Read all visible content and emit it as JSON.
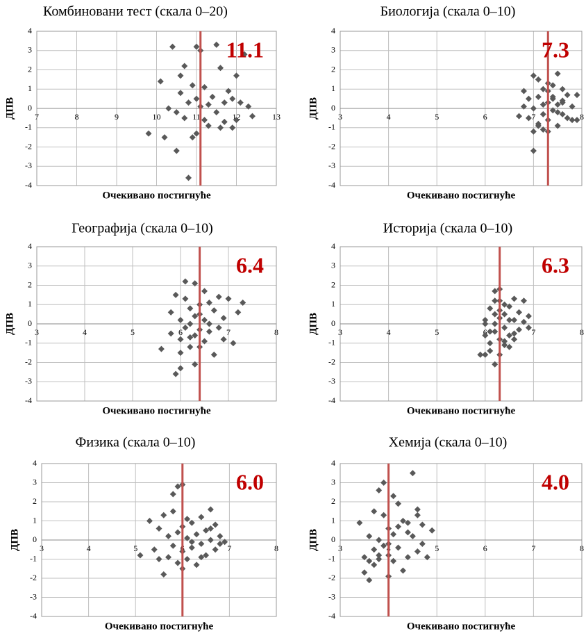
{
  "chart_data": [
    {
      "type": "scatter",
      "title": "Комбиновани тест (скала 0–20)",
      "xlabel": "Очекивано постигнуће",
      "ylabel": "ДПВ",
      "xlim": [
        7,
        13
      ],
      "xticks": [
        7,
        8,
        9,
        10,
        11,
        12,
        13
      ],
      "ylim": [
        -4,
        4
      ],
      "yticks": [
        -4,
        -3,
        -2,
        -1,
        0,
        1,
        2,
        3,
        4
      ],
      "grid": true,
      "vline": {
        "value": 11.1,
        "label": "11.1",
        "color": "#c0504d",
        "label_color": "#c00000"
      },
      "series": [
        {
          "color": "#595959",
          "x": [
            9.8,
            10.1,
            10.2,
            10.3,
            10.4,
            10.5,
            10.5,
            10.6,
            10.6,
            10.7,
            10.7,
            10.8,
            10.8,
            10.9,
            10.9,
            11.0,
            11.0,
            11.0,
            11.1,
            11.1,
            11.2,
            11.2,
            11.3,
            11.3,
            11.4,
            11.5,
            11.5,
            11.6,
            11.6,
            11.7,
            11.7,
            11.8,
            11.9,
            11.9,
            12.0,
            12.0,
            12.1,
            12.2,
            12.3,
            12.4
          ],
          "values": [
            -1.3,
            1.4,
            -1.5,
            0.0,
            3.2,
            -0.2,
            -2.2,
            0.8,
            1.7,
            -0.5,
            2.2,
            0.3,
            -3.6,
            1.2,
            -1.5,
            3.2,
            0.5,
            -1.3,
            0.1,
            3.0,
            -0.6,
            1.1,
            0.2,
            -0.9,
            0.6,
            3.3,
            -0.2,
            -1.0,
            2.1,
            0.3,
            -0.7,
            0.9,
            0.5,
            -1.0,
            1.7,
            -0.6,
            0.3,
            2.8,
            0.1,
            -0.4
          ]
        }
      ]
    },
    {
      "type": "scatter",
      "title": "Биологија (скала 0–10)",
      "xlabel": "Очекивано постигнуће",
      "ylabel": "ДПВ",
      "xlim": [
        3,
        8
      ],
      "xticks": [
        3,
        4,
        5,
        6,
        7,
        8
      ],
      "ylim": [
        -4,
        4
      ],
      "yticks": [
        -4,
        -3,
        -2,
        -1,
        0,
        1,
        2,
        3,
        4
      ],
      "grid": true,
      "vline": {
        "value": 7.3,
        "label": "7.3",
        "color": "#c0504d",
        "label_color": "#c00000"
      },
      "series": [
        {
          "color": "#595959",
          "x": [
            6.7,
            6.8,
            6.8,
            6.9,
            6.9,
            7.0,
            7.0,
            7.0,
            7.1,
            7.1,
            7.1,
            7.2,
            7.2,
            7.2,
            7.3,
            7.3,
            7.3,
            7.3,
            7.4,
            7.4,
            7.4,
            7.5,
            7.5,
            7.5,
            7.6,
            7.6,
            7.6,
            7.7,
            7.7,
            7.8,
            7.8,
            7.9,
            7.0,
            7.2,
            7.4,
            7.5,
            7.3,
            7.6,
            7.1,
            7.9
          ],
          "values": [
            -0.4,
            0.9,
            0.1,
            -0.5,
            0.5,
            1.7,
            -2.2,
            -1.2,
            0.6,
            1.5,
            -0.8,
            1.0,
            -0.3,
            0.2,
            -0.6,
            0.9,
            0.3,
            -1.2,
            0.5,
            -0.1,
            1.2,
            0.2,
            -0.9,
            1.8,
            0.4,
            -0.3,
            1.0,
            0.7,
            -0.5,
            0.1,
            -0.6,
            0.7,
            0.0,
            -1.1,
            0.6,
            -0.2,
            1.3,
            0.3,
            -0.9,
            -0.6
          ]
        }
      ]
    },
    {
      "type": "scatter",
      "title": "Географија (скала 0–10)",
      "xlabel": "Очекивано постигнуће",
      "ylabel": "ДПВ",
      "xlim": [
        3,
        8
      ],
      "xticks": [
        3,
        4,
        5,
        6,
        7,
        8
      ],
      "ylim": [
        -4,
        4
      ],
      "yticks": [
        -4,
        -3,
        -2,
        -1,
        0,
        1,
        2,
        3,
        4
      ],
      "grid": true,
      "vline": {
        "value": 6.4,
        "label": "6.4",
        "color": "#c0504d",
        "label_color": "#c00000"
      },
      "series": [
        {
          "color": "#595959",
          "x": [
            5.6,
            5.8,
            5.8,
            5.9,
            5.9,
            6.0,
            6.0,
            6.0,
            6.1,
            6.1,
            6.1,
            6.2,
            6.2,
            6.2,
            6.3,
            6.3,
            6.3,
            6.3,
            6.4,
            6.4,
            6.4,
            6.5,
            6.5,
            6.5,
            6.6,
            6.6,
            6.7,
            6.7,
            6.8,
            6.8,
            6.9,
            6.9,
            7.0,
            7.1,
            7.2,
            7.3,
            6.0,
            6.2,
            6.4,
            6.6
          ],
          "values": [
            -1.3,
            0.6,
            -0.5,
            -2.6,
            1.5,
            0.2,
            -2.3,
            -0.8,
            2.2,
            -0.2,
            1.3,
            0.8,
            -1.2,
            0.0,
            2.1,
            -0.6,
            0.4,
            -2.1,
            1.0,
            -0.3,
            0.5,
            1.7,
            -0.9,
            0.2,
            1.1,
            -0.4,
            0.7,
            -1.6,
            1.4,
            -0.2,
            0.3,
            -0.8,
            1.3,
            -1.0,
            0.6,
            1.1,
            -1.5,
            -0.7,
            -1.2,
            0.0
          ]
        }
      ]
    },
    {
      "type": "scatter",
      "title": "Историја (скала 0–10)",
      "xlabel": "Очекивано постигнуће",
      "ylabel": "ДПВ",
      "xlim": [
        3,
        8
      ],
      "xticks": [
        3,
        4,
        5,
        6,
        7,
        8
      ],
      "ylim": [
        -4,
        4
      ],
      "yticks": [
        -4,
        -3,
        -2,
        -1,
        0,
        1,
        2,
        3,
        4
      ],
      "grid": true,
      "vline": {
        "value": 6.3,
        "label": "6.3",
        "color": "#c0504d",
        "label_color": "#c00000"
      },
      "series": [
        {
          "color": "#595959",
          "x": [
            5.9,
            6.0,
            6.0,
            6.0,
            6.1,
            6.1,
            6.1,
            6.2,
            6.2,
            6.2,
            6.2,
            6.3,
            6.3,
            6.3,
            6.3,
            6.4,
            6.4,
            6.4,
            6.5,
            6.5,
            6.5,
            6.6,
            6.6,
            6.6,
            6.7,
            6.7,
            6.8,
            6.8,
            6.9,
            6.9,
            6.0,
            6.1,
            6.2,
            6.3,
            6.4,
            6.5,
            6.6,
            6.2,
            6.3,
            6.4
          ],
          "values": [
            -1.6,
            -1.6,
            0.2,
            -0.6,
            0.8,
            -0.4,
            -1.4,
            1.2,
            0.0,
            -2.1,
            1.7,
            1.8,
            0.3,
            -0.8,
            -1.6,
            1.0,
            -0.2,
            0.5,
            0.9,
            -0.6,
            -1.2,
            1.3,
            0.2,
            -0.8,
            0.6,
            -0.3,
            1.2,
            0.1,
            0.4,
            -0.2,
            0.0,
            -1.0,
            0.5,
            1.2,
            -1.1,
            0.2,
            -0.5,
            -0.4,
            0.7,
            -0.9
          ]
        }
      ]
    },
    {
      "type": "scatter",
      "title": "Физика (скала 0–10)",
      "xlabel": "Очекивано постигнуће",
      "ylabel": "ДПВ",
      "xlim": [
        3,
        8
      ],
      "xticks": [
        3,
        4,
        5,
        6,
        7,
        8
      ],
      "ylim": [
        -4,
        4
      ],
      "yticks": [
        -4,
        -3,
        -2,
        -1,
        0,
        1,
        2,
        3,
        4
      ],
      "grid": true,
      "vline": {
        "value": 6,
        "label": "6.0",
        "color": "#c0504d",
        "label_color": "#c00000"
      },
      "series": [
        {
          "color": "#595959",
          "x": [
            5.1,
            5.3,
            5.4,
            5.5,
            5.6,
            5.6,
            5.7,
            5.7,
            5.8,
            5.8,
            5.9,
            5.9,
            5.9,
            6.0,
            6.0,
            6.0,
            6.1,
            6.1,
            6.1,
            6.2,
            6.2,
            6.3,
            6.3,
            6.4,
            6.4,
            6.5,
            6.5,
            6.6,
            6.6,
            6.7,
            6.7,
            6.8,
            6.8,
            6.9,
            5.8,
            6.0,
            6.2,
            6.4,
            6.6,
            5.5
          ],
          "values": [
            -0.8,
            1.0,
            -0.5,
            0.6,
            -1.8,
            1.3,
            0.2,
            -0.9,
            2.4,
            -0.3,
            2.8,
            0.4,
            -1.2,
            2.9,
            -0.6,
            0.7,
            1.1,
            -1.0,
            0.1,
            -0.4,
            0.9,
            0.3,
            -1.3,
            1.2,
            -0.2,
            0.5,
            -0.8,
            1.6,
            0.0,
            0.8,
            -0.5,
            0.2,
            -0.2,
            -0.1,
            1.5,
            -1.5,
            -0.1,
            -0.9,
            0.6,
            -1.0
          ]
        }
      ]
    },
    {
      "type": "scatter",
      "title": "Хемија (скала 0–10)",
      "xlabel": "Очекивано постигнуће",
      "ylabel": "ДПВ",
      "xlim": [
        3,
        8
      ],
      "xticks": [
        3,
        4,
        5,
        6,
        7,
        8
      ],
      "ylim": [
        -4,
        4
      ],
      "yticks": [
        -4,
        -3,
        -2,
        -1,
        0,
        1,
        2,
        3,
        4
      ],
      "grid": true,
      "vline": {
        "value": 4,
        "label": "4.0",
        "color": "#c0504d",
        "label_color": "#c00000"
      },
      "series": [
        {
          "color": "#595959",
          "x": [
            3.4,
            3.5,
            3.5,
            3.6,
            3.6,
            3.7,
            3.7,
            3.7,
            3.8,
            3.8,
            3.8,
            3.9,
            3.9,
            3.9,
            4.0,
            4.0,
            4.0,
            4.1,
            4.1,
            4.1,
            4.2,
            4.2,
            4.3,
            4.3,
            4.4,
            4.4,
            4.5,
            4.5,
            4.6,
            4.6,
            4.7,
            4.7,
            4.8,
            4.9,
            3.6,
            3.8,
            4.0,
            4.2,
            4.4,
            4.6
          ],
          "values": [
            0.9,
            -0.9,
            -1.7,
            0.2,
            -2.1,
            1.5,
            -0.5,
            -1.3,
            2.6,
            0.0,
            -1.0,
            3.0,
            -0.3,
            1.3,
            -1.9,
            0.6,
            -0.8,
            2.3,
            -1.1,
            0.3,
            1.9,
            -0.4,
            1.0,
            -1.6,
            0.4,
            -0.9,
            0.2,
            3.5,
            1.3,
            -0.6,
            0.8,
            -0.2,
            -0.9,
            0.5,
            -1.1,
            -0.8,
            -0.2,
            0.7,
            0.9,
            1.6
          ]
        }
      ]
    }
  ]
}
